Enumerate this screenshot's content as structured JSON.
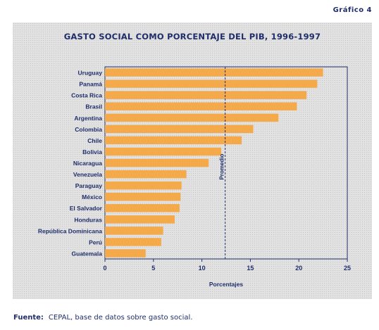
{
  "header": {
    "figure_label": "Gráfico 4"
  },
  "footer": {
    "source_label": "Fuente:",
    "source_text": "CEPAL, base de datos sobre gasto social."
  },
  "colors": {
    "bar": "#f4a94a",
    "text": "#1f2e6b",
    "axis": "#1f2e6b"
  },
  "chart_data": {
    "type": "bar",
    "orientation": "horizontal",
    "title": "GASTO SOCIAL COMO PORCENTAJE DEL PIB, 1996-1997",
    "xlabel": "Porcentajes",
    "ylabel": "",
    "xlim": [
      0,
      25
    ],
    "xticks": [
      0,
      5,
      10,
      15,
      20,
      25
    ],
    "categories": [
      "Uruguay",
      "Panamá",
      "Costa Rica",
      "Brasil",
      "Argentina",
      "Colombia",
      "Chile",
      "Bolivia",
      "Nicaragua",
      "Venezuela",
      "Paraguay",
      "México",
      "El Salvador",
      "Honduras",
      "República Dominicana",
      "Perú",
      "Guatemala"
    ],
    "values": [
      22.5,
      21.9,
      20.8,
      19.8,
      17.9,
      15.3,
      14.1,
      12.0,
      10.7,
      8.4,
      7.9,
      7.8,
      7.7,
      7.2,
      6.0,
      5.8,
      4.2
    ],
    "reference_line": {
      "label": "Promedio",
      "value": 12.4
    },
    "grid": false,
    "legend": "none"
  }
}
